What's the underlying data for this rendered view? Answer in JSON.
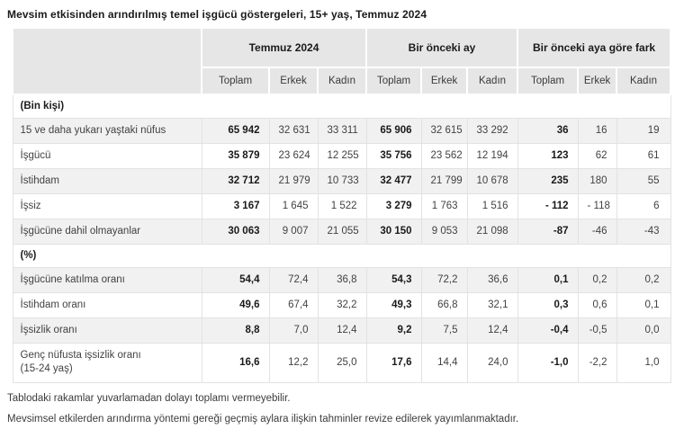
{
  "title": "Mevsim etkisinden arındırılmış temel işgücü göstergeleri, 15+ yaş, Temmuz 2024",
  "colors": {
    "header-bg": "#e6e6e6",
    "stripe-bg": "#f1f1f1",
    "border": "#e2e2e2",
    "text-strong": "#1a1a1a",
    "text": "#424242"
  },
  "chart_data": {
    "type": "table",
    "title": "Mevsim etkisinden arındırılmış temel işgücü göstergeleri, 15+ yaş, Temmuz 2024",
    "column_groups": [
      "Temmuz 2024",
      "Bir önceki ay",
      "Bir önceki aya göre fark"
    ],
    "sub_headers": [
      "Toplam",
      "Erkek",
      "Kadın"
    ]
  },
  "table": {
    "groups": [
      {
        "label": "Temmuz 2024"
      },
      {
        "label": "Bir önceki ay"
      },
      {
        "label": "Bir önceki aya göre fark"
      }
    ],
    "sub_headers": [
      "Toplam",
      "Erkek",
      "Kadın",
      "Toplam",
      "Erkek",
      "Kadın",
      "Toplam",
      "Erkek",
      "Kadın"
    ],
    "sections": [
      {
        "label": "(Bin kişi)",
        "rows": [
          {
            "label": "15 ve daha yukarı yaştaki nüfus",
            "label2": "",
            "values": [
              "65 942",
              "32 631",
              "33 311",
              "65 906",
              "32 615",
              "33 292",
              "36",
              "16",
              "19"
            ]
          },
          {
            "label": "İşgücü",
            "label2": "",
            "values": [
              "35 879",
              "23 624",
              "12 255",
              "35 756",
              "23 562",
              "12 194",
              "123",
              "62",
              "61"
            ]
          },
          {
            "label": "İstihdam",
            "label2": "",
            "values": [
              "32 712",
              "21 979",
              "10 733",
              "32 477",
              "21 799",
              "10 678",
              "235",
              "180",
              "55"
            ]
          },
          {
            "label": "İşsiz",
            "label2": "",
            "values": [
              "3 167",
              "1 645",
              "1 522",
              "3 279",
              "1 763",
              "1 516",
              "- 112",
              "- 118",
              "6"
            ]
          },
          {
            "label": "İşgücüne dahil olmayanlar",
            "label2": "",
            "values": [
              "30 063",
              "9 007",
              "21 055",
              "30 150",
              "9 053",
              "21 098",
              "-87",
              "-46",
              "-43"
            ]
          }
        ]
      },
      {
        "label": "(%)",
        "rows": [
          {
            "label": "İşgücüne katılma oranı",
            "label2": "",
            "values": [
              "54,4",
              "72,4",
              "36,8",
              "54,3",
              "72,2",
              "36,6",
              "0,1",
              "0,2",
              "0,2"
            ]
          },
          {
            "label": "İstihdam oranı",
            "label2": "",
            "values": [
              "49,6",
              "67,4",
              "32,2",
              "49,3",
              "66,8",
              "32,1",
              "0,3",
              "0,6",
              "0,1"
            ]
          },
          {
            "label": "İşsizlik oranı",
            "label2": "",
            "values": [
              "8,8",
              "7,0",
              "12,4",
              "9,2",
              "7,5",
              "12,4",
              "-0,4",
              "-0,5",
              "0,0"
            ]
          },
          {
            "label": "Genç nüfusta işsizlik oranı",
            "label2": "(15-24 yaş)",
            "values": [
              "16,6",
              "12,2",
              "25,0",
              "17,6",
              "14,4",
              "24,0",
              "-1,0",
              "-2,2",
              "1,0"
            ]
          }
        ]
      }
    ]
  },
  "footnotes": [
    "Tablodaki rakamlar yuvarlamadan dolayı toplamı vermeyebilir.",
    "Mevsimsel etkilerden arındırma yöntemi gereği geçmiş aylara ilişkin tahminler revize edilerek yayımlanmaktadır."
  ]
}
